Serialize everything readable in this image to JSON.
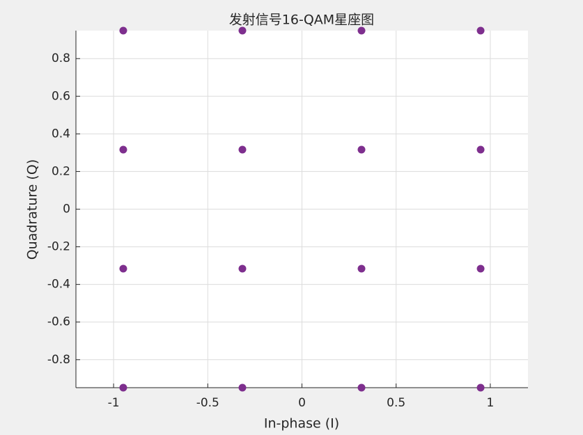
{
  "chart_data": {
    "type": "scatter",
    "title": "发射信号16-QAM星座图",
    "x_label": "In-phase (I)",
    "y_label": "Quadrature (Q)",
    "x": [
      -0.9487,
      -0.9487,
      -0.9487,
      -0.9487,
      -0.3162,
      -0.3162,
      -0.3162,
      -0.3162,
      0.3162,
      0.3162,
      0.3162,
      0.3162,
      0.9487,
      0.9487,
      0.9487,
      0.9487
    ],
    "series": [
      {
        "color": "#7e2f8e",
        "values": [
          -0.9487,
          -0.3162,
          0.3162,
          0.9487,
          -0.9487,
          -0.3162,
          0.3162,
          0.9487,
          -0.9487,
          -0.3162,
          0.3162,
          0.9487,
          -0.9487,
          -0.3162,
          0.3162,
          0.9487
        ]
      }
    ],
    "xlim": [
      -1.2,
      1.2
    ],
    "ylim": [
      -0.9487,
      0.9487
    ],
    "xticks": [
      -1,
      -0.5,
      0,
      0.5,
      1
    ],
    "yticks": [
      -0.8,
      -0.6,
      -0.4,
      -0.2,
      0,
      0.2,
      0.4,
      0.6,
      0.8
    ],
    "grid": true
  }
}
